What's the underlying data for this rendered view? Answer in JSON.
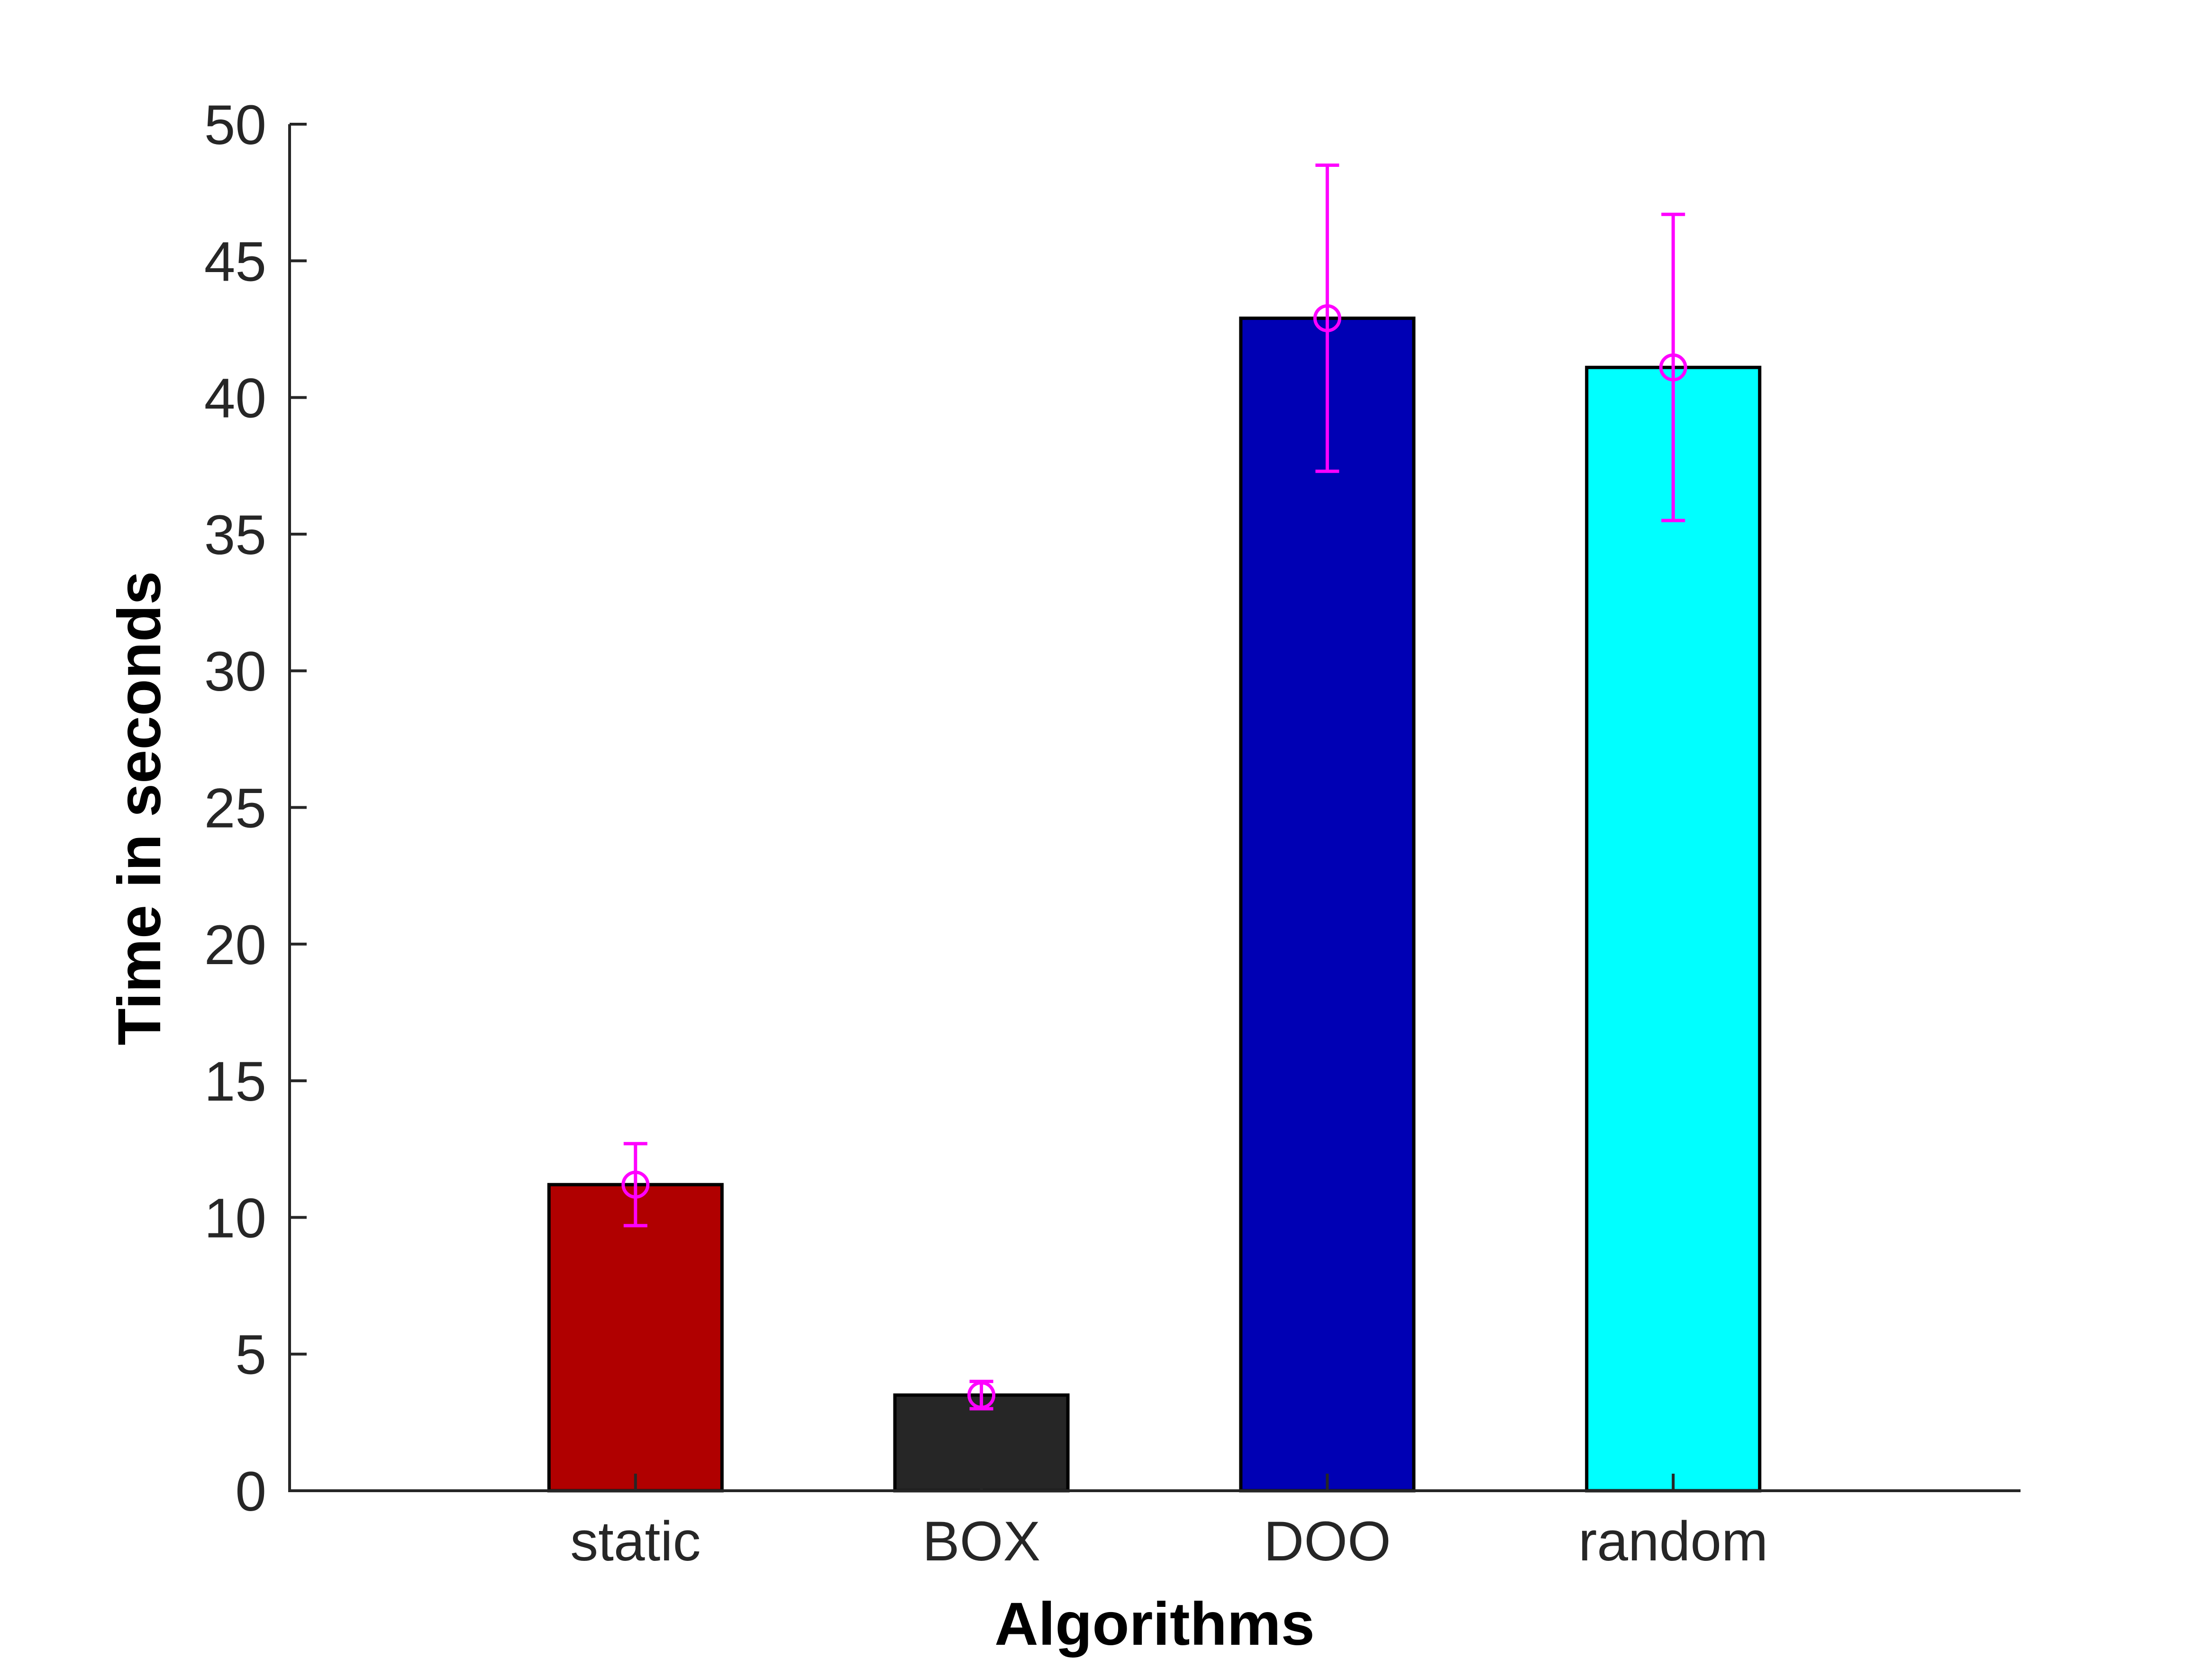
{
  "chart_data": {
    "type": "bar",
    "title": "",
    "xlabel": "Algorithms",
    "ylabel": "Time in seconds",
    "categories": [
      "static",
      "BOX",
      "DOO",
      "random"
    ],
    "values": [
      11.2,
      3.5,
      42.9,
      41.1
    ],
    "error_low": [
      9.7,
      3.0,
      37.3,
      35.5
    ],
    "error_high": [
      12.7,
      4.0,
      48.5,
      46.7
    ],
    "bar_colors": [
      "#b00000",
      "#262626",
      "#0000b4",
      "#00ffff"
    ],
    "error_color": "#ff00ff",
    "ylim": [
      0,
      50
    ],
    "yticks": [
      "0",
      "5",
      "10",
      "15",
      "20",
      "25",
      "30",
      "35",
      "40",
      "45",
      "50"
    ],
    "grid": false,
    "legend": "none"
  }
}
